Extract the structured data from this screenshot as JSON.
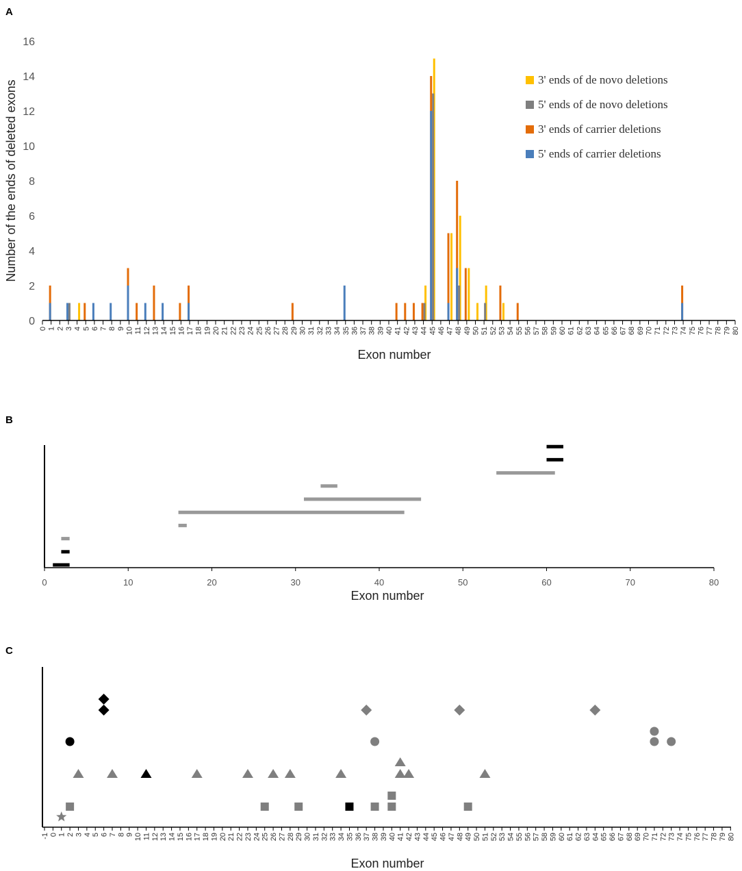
{
  "colors": {
    "denovo3": "#FFC000",
    "denovo5": "#7F7F7F",
    "carrier3": "#E36C09",
    "carrier5": "#4A7EBB",
    "black": "#000000",
    "gray": "#999999",
    "markerGray": "#7F7F7F"
  },
  "chart_data": [
    {
      "panel": "A",
      "type": "bar",
      "xlabel": "Exon number",
      "ylabel": "Number of the ends of deleted exons",
      "ylim": [
        0,
        16
      ],
      "yticks": [
        0,
        2,
        4,
        6,
        8,
        10,
        12,
        14,
        16
      ],
      "xlim": [
        0,
        80
      ],
      "legend": [
        "3' ends of de novo deletions",
        "5' ends of de novo deletions",
        "3' ends of carrier deletions",
        "5' ends of carrier deletions"
      ],
      "series": [
        {
          "name": "5' ends of carrier deletions",
          "key": "carrier5",
          "points": [
            [
              1,
              1
            ],
            [
              3,
              1
            ],
            [
              6,
              1
            ],
            [
              8,
              1
            ],
            [
              10,
              2
            ],
            [
              12,
              1
            ],
            [
              14,
              1
            ],
            [
              17,
              1
            ],
            [
              35,
              2
            ],
            [
              45,
              12
            ],
            [
              47,
              1
            ],
            [
              48,
              3
            ],
            [
              74,
              1
            ]
          ]
        },
        {
          "name": "3' ends of carrier deletions",
          "key": "carrier3",
          "points": [
            [
              1,
              2
            ],
            [
              5,
              1
            ],
            [
              10,
              3
            ],
            [
              11,
              1
            ],
            [
              13,
              2
            ],
            [
              16,
              1
            ],
            [
              17,
              2
            ],
            [
              29,
              1
            ],
            [
              41,
              1
            ],
            [
              42,
              1
            ],
            [
              43,
              1
            ],
            [
              44,
              1
            ],
            [
              45,
              14
            ],
            [
              47,
              5
            ],
            [
              48,
              8
            ],
            [
              49,
              3
            ],
            [
              53,
              2
            ],
            [
              55,
              1
            ],
            [
              74,
              2
            ]
          ]
        },
        {
          "name": "5' ends of de novo deletions",
          "key": "denovo5",
          "points": [
            [
              3,
              1
            ],
            [
              44,
              1
            ],
            [
              45,
              13
            ],
            [
              48,
              2
            ],
            [
              51,
              1
            ]
          ]
        },
        {
          "name": "3' ends of de novo deletions",
          "key": "denovo3",
          "points": [
            [
              4,
              1
            ],
            [
              44,
              2
            ],
            [
              45,
              15
            ],
            [
              47,
              5
            ],
            [
              48,
              6
            ],
            [
              49,
              3
            ],
            [
              50,
              1
            ],
            [
              51,
              2
            ],
            [
              53,
              1
            ]
          ]
        }
      ]
    },
    {
      "panel": "B",
      "type": "bar",
      "xlabel": "Exon number",
      "xlim": [
        0,
        80
      ],
      "xticks": [
        0,
        10,
        20,
        30,
        40,
        50,
        60,
        70,
        80
      ],
      "segments": [
        {
          "start": 1,
          "end": 3,
          "color": "black",
          "row": 0
        },
        {
          "start": 2,
          "end": 3,
          "color": "black",
          "row": 1
        },
        {
          "start": 2,
          "end": 3,
          "color": "gray",
          "row": 2
        },
        {
          "start": 16,
          "end": 17,
          "color": "gray",
          "row": 3
        },
        {
          "start": 16,
          "end": 43,
          "color": "gray",
          "row": 4
        },
        {
          "start": 31,
          "end": 45,
          "color": "gray",
          "row": 5
        },
        {
          "start": 33,
          "end": 35,
          "color": "gray",
          "row": 6
        },
        {
          "start": 54,
          "end": 61,
          "color": "gray",
          "row": 7
        },
        {
          "start": 60,
          "end": 62,
          "color": "black",
          "row": 8
        },
        {
          "start": 60,
          "end": 62,
          "color": "black",
          "row": 9
        }
      ]
    },
    {
      "panel": "C",
      "type": "scatter",
      "xlabel": "Exon number",
      "xlim": [
        -1,
        80
      ],
      "points": [
        {
          "x": 1,
          "row": 0,
          "shape": "star",
          "color": "gray"
        },
        {
          "x": 2,
          "row": 1,
          "shape": "square",
          "color": "gray"
        },
        {
          "x": 25,
          "row": 1,
          "shape": "square",
          "color": "gray"
        },
        {
          "x": 29,
          "row": 1,
          "shape": "square",
          "color": "gray"
        },
        {
          "x": 35,
          "row": 1,
          "shape": "square",
          "color": "black"
        },
        {
          "x": 38,
          "row": 1,
          "shape": "square",
          "color": "gray"
        },
        {
          "x": 40,
          "row": 1,
          "shape": "square",
          "color": "gray"
        },
        {
          "x": 40,
          "row": 2,
          "shape": "square",
          "color": "gray"
        },
        {
          "x": 49,
          "row": 1,
          "shape": "square",
          "color": "gray"
        },
        {
          "x": 3,
          "row": 3,
          "shape": "triangle",
          "color": "gray"
        },
        {
          "x": 7,
          "row": 3,
          "shape": "triangle",
          "color": "gray"
        },
        {
          "x": 11,
          "row": 3,
          "shape": "triangle",
          "color": "black"
        },
        {
          "x": 17,
          "row": 3,
          "shape": "triangle",
          "color": "gray"
        },
        {
          "x": 23,
          "row": 3,
          "shape": "triangle",
          "color": "gray"
        },
        {
          "x": 26,
          "row": 3,
          "shape": "triangle",
          "color": "gray"
        },
        {
          "x": 28,
          "row": 3,
          "shape": "triangle",
          "color": "gray"
        },
        {
          "x": 34,
          "row": 3,
          "shape": "triangle",
          "color": "gray"
        },
        {
          "x": 41,
          "row": 3,
          "shape": "triangle",
          "color": "gray"
        },
        {
          "x": 41,
          "row": 4,
          "shape": "triangle",
          "color": "gray"
        },
        {
          "x": 42,
          "row": 3,
          "shape": "triangle",
          "color": "gray"
        },
        {
          "x": 51,
          "row": 3,
          "shape": "triangle",
          "color": "gray"
        },
        {
          "x": 2,
          "row": 5,
          "shape": "circle",
          "color": "black"
        },
        {
          "x": 38,
          "row": 5,
          "shape": "circle",
          "color": "gray"
        },
        {
          "x": 71,
          "row": 5,
          "shape": "circle",
          "color": "gray"
        },
        {
          "x": 71,
          "row": 6,
          "shape": "circle",
          "color": "gray"
        },
        {
          "x": 73,
          "row": 5,
          "shape": "circle",
          "color": "gray"
        },
        {
          "x": 6,
          "row": 7,
          "shape": "diamond",
          "color": "black"
        },
        {
          "x": 6,
          "row": 8,
          "shape": "diamond",
          "color": "black"
        },
        {
          "x": 37,
          "row": 7,
          "shape": "diamond",
          "color": "gray"
        },
        {
          "x": 48,
          "row": 7,
          "shape": "diamond",
          "color": "gray"
        },
        {
          "x": 64,
          "row": 7,
          "shape": "diamond",
          "color": "gray"
        }
      ]
    }
  ],
  "panels": {
    "a": "A",
    "b": "B",
    "c": "C"
  }
}
